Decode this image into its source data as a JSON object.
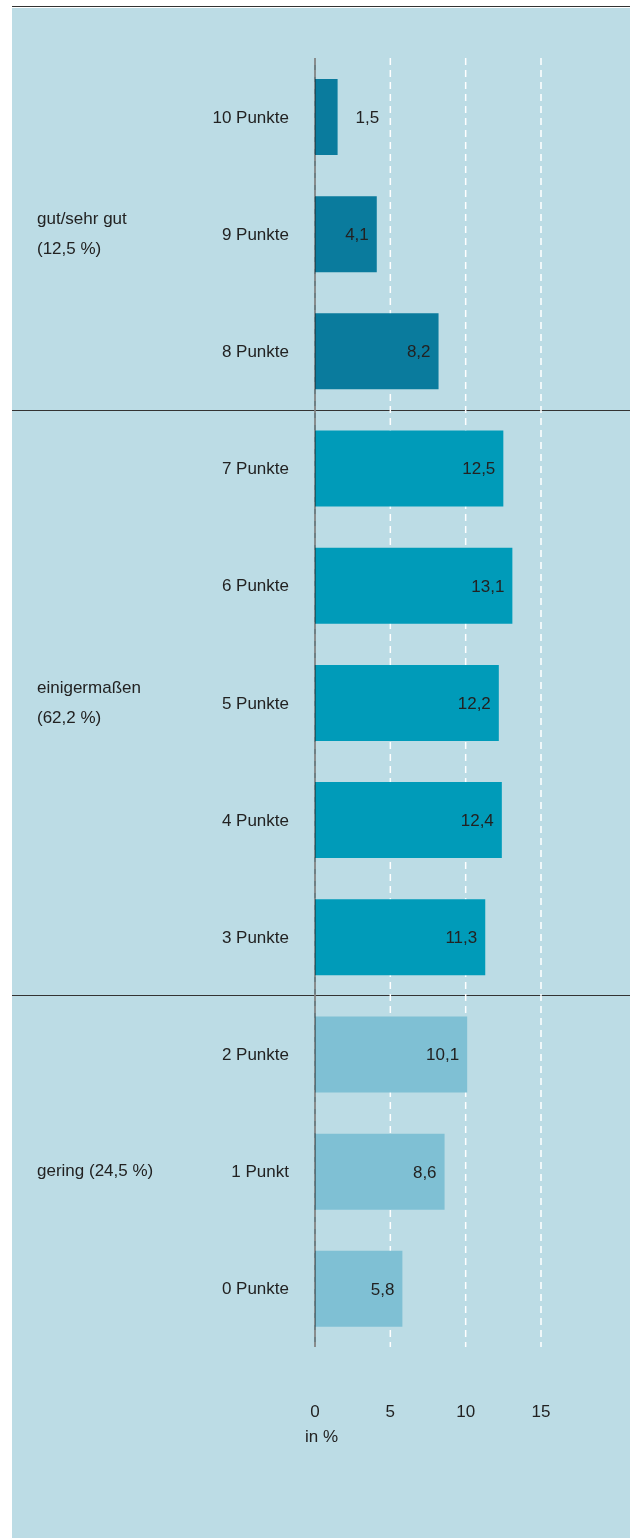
{
  "chart_data": {
    "type": "bar",
    "orientation": "horizontal",
    "categories": [
      "10 Punkte",
      "9 Punkte",
      "8 Punkte",
      "7 Punkte",
      "6 Punkte",
      "5 Punkte",
      "4 Punkte",
      "3 Punkte",
      "2 Punkte",
      "1 Punkt",
      "0 Punkte"
    ],
    "values": [
      1.5,
      4.1,
      8.2,
      12.5,
      13.1,
      12.2,
      12.4,
      11.3,
      10.1,
      8.6,
      5.8
    ],
    "colors": [
      "#0a7b9d",
      "#0a7b9d",
      "#0a7b9d",
      "#009bb9",
      "#009bb9",
      "#009bb9",
      "#009bb9",
      "#009bb9",
      "#7fc0d4",
      "#7fc0d4",
      "#7fc0d4"
    ],
    "value_labels": [
      "1,5",
      "4,1",
      "8,2",
      "12,5",
      "13,1",
      "12,2",
      "12,4",
      "11,3",
      "10,1",
      "8,6",
      "5,8"
    ],
    "xlim": [
      0,
      15
    ],
    "xticks": [
      0,
      5,
      10,
      15
    ],
    "xlabel": "in %",
    "grid": "x",
    "annotations": [
      "gut/sehr gut (12,5 %)",
      "einigermaßen (62,2 %)",
      "gering (24,5 %)"
    ]
  }
}
